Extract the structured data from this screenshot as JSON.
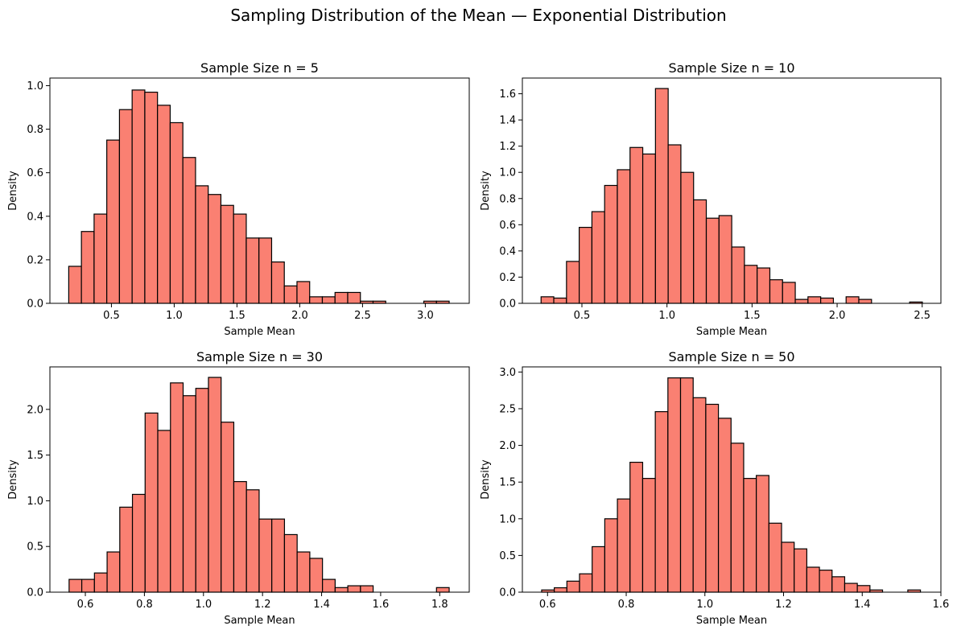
{
  "figure": {
    "title": "Sampling Distribution of the Mean — Exponential Distribution"
  },
  "colors": {
    "bar_fill": "#fa8072",
    "bar_edge": "#000000",
    "background": "#ffffff"
  },
  "chart_data": [
    {
      "type": "bar",
      "title": "Sample Size n = 5",
      "xlabel": "Sample Mean",
      "ylabel": "Density",
      "bin_start": 0.16,
      "bin_width": 0.101,
      "values": [
        0.17,
        0.33,
        0.41,
        0.75,
        0.89,
        0.98,
        0.97,
        0.91,
        0.83,
        0.67,
        0.54,
        0.5,
        0.45,
        0.41,
        0.3,
        0.3,
        0.19,
        0.08,
        0.1,
        0.03,
        0.03,
        0.05,
        0.05,
        0.01,
        0.01,
        0,
        0,
        0,
        0.01,
        0.01
      ],
      "xlim": [
        0.01,
        3.35
      ],
      "ylim": [
        0,
        1.035
      ],
      "xticks": [
        0.5,
        1.0,
        1.5,
        2.0,
        2.5,
        3.0
      ],
      "xtick_labels": [
        "0.5",
        "1.0",
        "1.5",
        "2.0",
        "2.5",
        "3.0"
      ],
      "yticks": [
        0.0,
        0.2,
        0.4,
        0.6,
        0.8,
        1.0
      ],
      "ytick_labels": [
        "0.0",
        "0.2",
        "0.4",
        "0.6",
        "0.8",
        "1.0"
      ]
    },
    {
      "type": "bar",
      "title": "Sample Size n = 10",
      "xlabel": "Sample Mean",
      "ylabel": "Density",
      "bin_start": 0.26,
      "bin_width": 0.0747,
      "values": [
        0.05,
        0.04,
        0.32,
        0.58,
        0.7,
        0.9,
        1.02,
        1.19,
        1.14,
        1.64,
        1.21,
        1.0,
        0.79,
        0.65,
        0.67,
        0.43,
        0.29,
        0.27,
        0.18,
        0.16,
        0.03,
        0.05,
        0.04,
        0,
        0.05,
        0.03,
        0,
        0,
        0,
        0.01
      ],
      "xlim": [
        0.15,
        2.61
      ],
      "ylim": [
        0,
        1.72
      ],
      "xticks": [
        0.5,
        1.0,
        1.5,
        2.0,
        2.5
      ],
      "xtick_labels": [
        "0.5",
        "1.0",
        "1.5",
        "2.0",
        "2.5"
      ],
      "yticks": [
        0.0,
        0.2,
        0.4,
        0.6,
        0.8,
        1.0,
        1.2,
        1.4,
        1.6
      ],
      "ytick_labels": [
        "0.0",
        "0.2",
        "0.4",
        "0.6",
        "0.8",
        "1.0",
        "1.2",
        "1.4",
        "1.6"
      ]
    },
    {
      "type": "bar",
      "title": "Sample Size n = 30",
      "xlabel": "Sample Mean",
      "ylabel": "Density",
      "bin_start": 0.545,
      "bin_width": 0.0429,
      "values": [
        0.14,
        0.14,
        0.21,
        0.44,
        0.93,
        1.07,
        1.96,
        1.77,
        2.29,
        2.15,
        2.23,
        2.35,
        1.86,
        1.21,
        1.12,
        0.8,
        0.8,
        0.63,
        0.44,
        0.37,
        0.14,
        0.05,
        0.07,
        0.07,
        0,
        0,
        0,
        0,
        0,
        0.05
      ],
      "xlim": [
        0.48,
        1.9
      ],
      "ylim": [
        0,
        2.465
      ],
      "xticks": [
        0.6,
        0.8,
        1.0,
        1.2,
        1.4,
        1.6,
        1.8
      ],
      "xtick_labels": [
        "0.6",
        "0.8",
        "1.0",
        "1.2",
        "1.4",
        "1.6",
        "1.8"
      ],
      "yticks": [
        0.0,
        0.5,
        1.0,
        1.5,
        2.0
      ],
      "ytick_labels": [
        "0.0",
        "0.5",
        "1.0",
        "1.5",
        "2.0"
      ]
    },
    {
      "type": "bar",
      "title": "Sample Size n = 50",
      "xlabel": "Sample Mean",
      "ylabel": "Density",
      "bin_start": 0.585,
      "bin_width": 0.0321,
      "values": [
        0.03,
        0.06,
        0.15,
        0.25,
        0.62,
        1.0,
        1.27,
        1.77,
        1.55,
        2.46,
        2.92,
        2.92,
        2.65,
        2.56,
        2.37,
        2.03,
        1.55,
        1.59,
        0.94,
        0.68,
        0.59,
        0.34,
        0.3,
        0.21,
        0.12,
        0.09,
        0.03,
        0,
        0,
        0.03
      ],
      "xlim": [
        0.536,
        1.6
      ],
      "ylim": [
        0,
        3.07
      ],
      "xticks": [
        0.6,
        0.8,
        1.0,
        1.2,
        1.4,
        1.6
      ],
      "xtick_labels": [
        "0.6",
        "0.8",
        "1.0",
        "1.2",
        "1.4",
        "1.6"
      ],
      "yticks": [
        0.0,
        0.5,
        1.0,
        1.5,
        2.0,
        2.5,
        3.0
      ],
      "ytick_labels": [
        "0.0",
        "0.5",
        "1.0",
        "1.5",
        "2.0",
        "2.5",
        "3.0"
      ]
    }
  ]
}
